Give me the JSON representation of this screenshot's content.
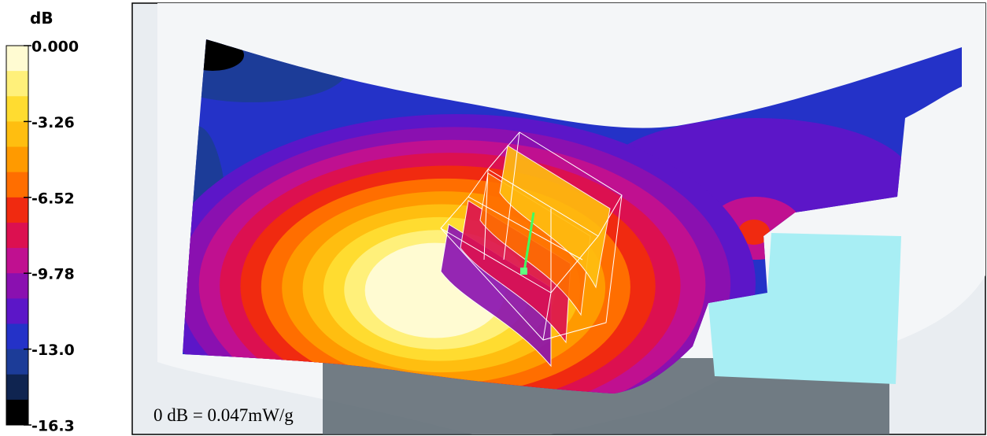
{
  "legend": {
    "unit": "dB",
    "ticks": [
      "0.000",
      "-3.26",
      "-6.52",
      "-9.78",
      "-13.0",
      "-16.3"
    ],
    "colors": [
      "#fffbd2",
      "#fff07a",
      "#ffdc30",
      "#ffbe10",
      "#ff9a00",
      "#ff6e00",
      "#f02a10",
      "#dc1050",
      "#c01090",
      "#8a10b0",
      "#5c16c8",
      "#2432c8",
      "#1c3c98",
      "#0f2450",
      "#000000"
    ]
  },
  "annotation": "0 dB = 0.047mW/g"
}
